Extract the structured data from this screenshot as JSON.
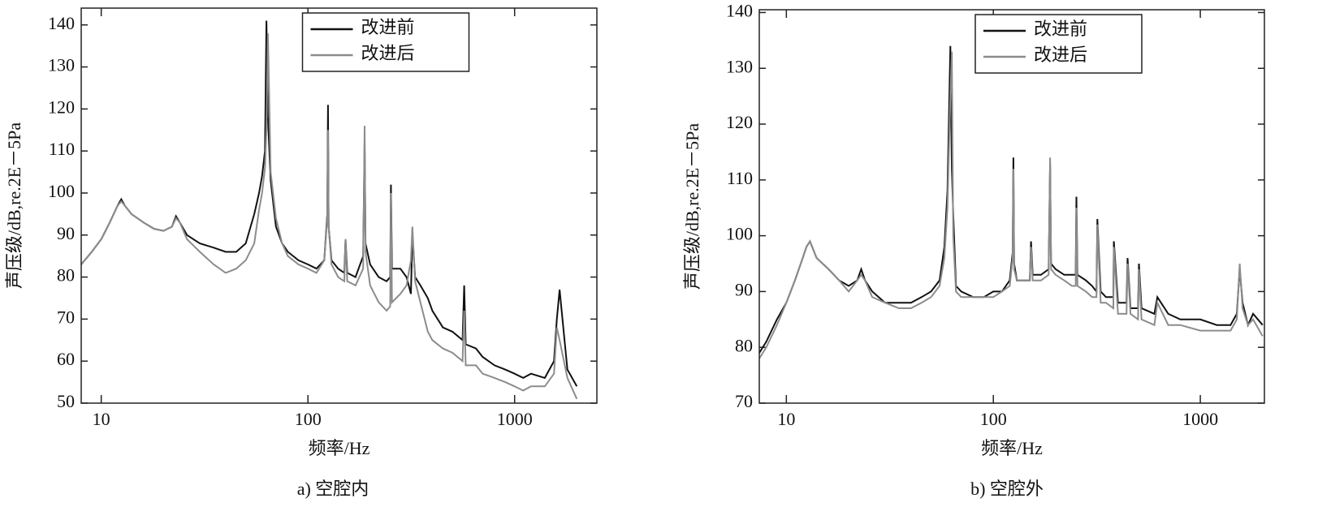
{
  "chart_data": [
    {
      "type": "line",
      "log_x": true,
      "caption": "a) 空腔内",
      "xlabel": "频率/Hz",
      "ylabel": "声压级/dB,re.2E－5Pa",
      "xlim": [
        8,
        2500
      ],
      "ylim": [
        50,
        144
      ],
      "xticks": [
        10,
        100,
        1000
      ],
      "yticks": [
        50,
        60,
        70,
        80,
        90,
        100,
        110,
        120,
        130,
        140
      ],
      "x": [
        8,
        9,
        10,
        11,
        12,
        12.5,
        13,
        14,
        16,
        18,
        20,
        22,
        23,
        24,
        26,
        30,
        35,
        40,
        45,
        50,
        55,
        58,
        60,
        62,
        63,
        64,
        66,
        70,
        75,
        80,
        90,
        100,
        110,
        120,
        124,
        125,
        126,
        130,
        140,
        150,
        152,
        155,
        170,
        185,
        188,
        190,
        200,
        220,
        240,
        250,
        252,
        255,
        280,
        300,
        315,
        320,
        330,
        350,
        380,
        400,
        450,
        500,
        560,
        570,
        580,
        650,
        700,
        800,
        900,
        1000,
        1100,
        1200,
        1400,
        1550,
        1600,
        1650,
        1800,
        2000
      ],
      "series": [
        {
          "name": "改进前",
          "color": "#111111",
          "values": [
            83,
            86,
            89,
            93,
            97,
            98.5,
            97,
            95,
            93,
            91.5,
            91,
            92,
            94.5,
            93,
            90,
            88,
            87,
            86,
            86,
            88,
            95,
            100,
            104,
            110,
            141,
            118,
            103,
            92,
            88,
            86,
            84,
            83,
            82,
            84,
            95,
            121,
            92,
            84,
            82,
            81,
            89,
            81,
            80,
            85,
            112,
            88,
            83,
            80,
            79,
            80,
            102,
            82,
            82,
            80,
            76,
            90,
            80,
            78,
            75,
            72,
            68,
            67,
            65,
            78,
            64,
            63,
            61,
            59,
            58,
            57,
            56,
            57,
            56,
            60,
            70,
            77,
            58,
            54
          ]
        },
        {
          "name": "改进后",
          "color": "#8c8c8c",
          "values": [
            83,
            86,
            89,
            93,
            97,
            98,
            97,
            95,
            93,
            91.5,
            91,
            92,
            94,
            93,
            89,
            86,
            83,
            81,
            82,
            84,
            88,
            96,
            100,
            106,
            115,
            138,
            105,
            94,
            88,
            85,
            83,
            82,
            81,
            84,
            94,
            115,
            92,
            83,
            80,
            79,
            89,
            79,
            78,
            82,
            116,
            86,
            78,
            74,
            72,
            73,
            100,
            74,
            76,
            78,
            84,
            92,
            79,
            74,
            67,
            65,
            63,
            62,
            60,
            72,
            59,
            59,
            57,
            56,
            55,
            54,
            53,
            54,
            54,
            57,
            68,
            65,
            56,
            51
          ]
        }
      ]
    },
    {
      "type": "line",
      "log_x": true,
      "caption": "b) 空腔外",
      "xlabel": "频率/Hz",
      "ylabel": "声压级/dB,re.2E－5Pa",
      "xlim": [
        7.4,
        2040
      ],
      "ylim": [
        70,
        140.5
      ],
      "xticks": [
        10,
        100,
        1000
      ],
      "yticks": [
        70,
        80,
        90,
        100,
        110,
        120,
        130,
        140
      ],
      "x": [
        7.4,
        8,
        9,
        10,
        11,
        12,
        12.5,
        13,
        14,
        16,
        18,
        20,
        22,
        23,
        24,
        26,
        30,
        35,
        40,
        45,
        50,
        55,
        58,
        60,
        62,
        63,
        64,
        66,
        70,
        80,
        90,
        100,
        110,
        120,
        124,
        125,
        126,
        130,
        140,
        150,
        152,
        155,
        170,
        185,
        188,
        190,
        200,
        220,
        240,
        250,
        252,
        255,
        280,
        300,
        315,
        318,
        330,
        350,
        380,
        382,
        400,
        440,
        445,
        460,
        500,
        505,
        520,
        600,
        620,
        700,
        800,
        1000,
        1200,
        1400,
        1500,
        1550,
        1600,
        1700,
        1800,
        2000
      ],
      "series": [
        {
          "name": "改进前",
          "color": "#111111",
          "values": [
            79,
            81,
            85,
            88,
            92,
            96,
            98,
            99,
            96,
            94,
            92,
            91,
            92,
            94,
            92,
            90,
            88,
            88,
            88,
            89,
            90,
            92,
            98,
            108,
            134,
            112,
            104,
            91,
            90,
            89,
            89,
            90,
            90,
            92,
            97,
            114,
            95,
            92,
            92,
            92,
            99,
            93,
            93,
            94,
            113,
            95,
            94,
            93,
            93,
            93,
            107,
            93,
            92,
            91,
            90,
            103,
            90,
            89,
            89,
            99,
            88,
            88,
            96,
            87,
            87,
            95,
            87,
            86,
            89,
            86,
            85,
            85,
            84,
            84,
            86,
            94,
            88,
            84,
            86,
            84
          ]
        },
        {
          "name": "改进后",
          "color": "#8c8c8c",
          "values": [
            78,
            80,
            84,
            88,
            92,
            96,
            98,
            99,
            96,
            94,
            92,
            90,
            92,
            93,
            92,
            89,
            88,
            87,
            87,
            88,
            89,
            91,
            96,
            105,
            125,
            133,
            100,
            90,
            89,
            89,
            89,
            89,
            90,
            91,
            96,
            112,
            94,
            92,
            92,
            92,
            98,
            92,
            92,
            93,
            114,
            94,
            93,
            92,
            91,
            91,
            105,
            91,
            90,
            89,
            89,
            102,
            88,
            88,
            87,
            98,
            86,
            86,
            95,
            86,
            85,
            94,
            85,
            84,
            88,
            84,
            84,
            83,
            83,
            83,
            85,
            95,
            87,
            84,
            85,
            82
          ]
        }
      ]
    }
  ]
}
